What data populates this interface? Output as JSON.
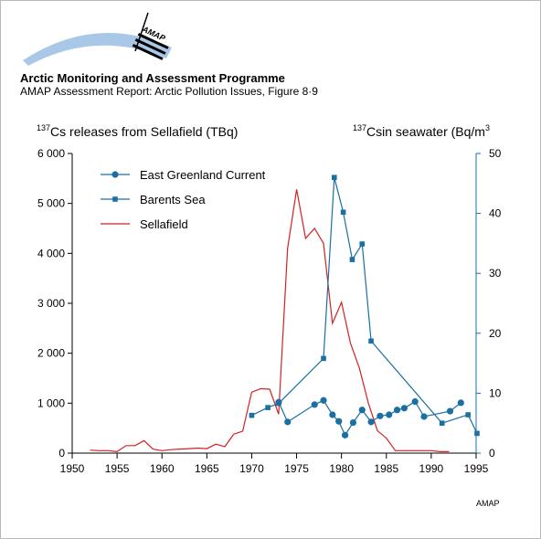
{
  "header": {
    "organization": "Arctic Monitoring and Assessment Programme",
    "report": "AMAP Assessment Report: Arctic Pollution Issues, Figure 8·9",
    "logo_text": "AMAP"
  },
  "footer": {
    "credit": "AMAP"
  },
  "colors": {
    "sellafield": "#d42020",
    "seawater": "#1a6fa3",
    "axis": "#000000"
  },
  "chart_data": {
    "type": "line",
    "left_axis_label": {
      "sup": "137",
      "text": "Cs releases from Sellafield (TBq)"
    },
    "right_axis_label": {
      "sup": "137",
      "text": "Csin seawater (Bq/m",
      "sup2": "3"
    },
    "x_ticks": [
      1950,
      1955,
      1960,
      1965,
      1970,
      1975,
      1980,
      1985,
      1990,
      1995
    ],
    "xlim": [
      1950,
      1995
    ],
    "y_left_ticks": [
      "0",
      "1 000",
      "2 000",
      "3 000",
      "4 000",
      "5 000",
      "6 000"
    ],
    "y_left_values": [
      0,
      1000,
      2000,
      3000,
      4000,
      5000,
      6000
    ],
    "ylim_left": [
      0,
      6000
    ],
    "y_right_ticks": [
      "0",
      "10",
      "20",
      "30",
      "40",
      "50"
    ],
    "y_right_values": [
      0,
      10,
      20,
      30,
      40,
      50
    ],
    "ylim_right": [
      0,
      50
    ],
    "legend_position": "top-left",
    "series": [
      {
        "name": "East Greenland Current",
        "axis": "right",
        "marker": "circle",
        "color": "#1a6fa3",
        "x": [
          1973,
          1974,
          1977,
          1978,
          1979,
          1979.7,
          1980.4,
          1981.3,
          1982.3,
          1983.3,
          1984.3,
          1985.3,
          1986.2,
          1987,
          1988.2,
          1989.2,
          1992.1,
          1993.3
        ],
        "y": [
          8.5,
          5.2,
          8.1,
          8.8,
          6.4,
          5.3,
          3.0,
          5.1,
          7.2,
          5.2,
          6.2,
          6.4,
          7.2,
          7.5,
          8.6,
          6.1,
          7.0,
          8.4
        ]
      },
      {
        "name": "Barents Sea",
        "axis": "right",
        "marker": "square",
        "color": "#1a6fa3",
        "x": [
          1970,
          1971.8,
          1973,
          1978,
          1979.2,
          1980.2,
          1981.2,
          1982.3,
          1983.3,
          1991.2,
          1994.1,
          1995.1
        ],
        "y": [
          6.3,
          7.6,
          8.3,
          15.8,
          46.0,
          40.2,
          32.3,
          34.9,
          18.7,
          5.0,
          6.4,
          3.3
        ]
      },
      {
        "name": "Sellafield",
        "axis": "left",
        "marker": "none",
        "color": "#d42020",
        "x": [
          1952,
          1953,
          1954,
          1955,
          1956,
          1957,
          1958,
          1959,
          1960,
          1961,
          1962,
          1963,
          1964,
          1965,
          1966,
          1967,
          1968,
          1969,
          1970,
          1971,
          1972,
          1973,
          1974,
          1975,
          1976,
          1977,
          1978,
          1979,
          1980,
          1981,
          1982,
          1983,
          1984,
          1985,
          1986,
          1987,
          1988,
          1989,
          1990,
          1991,
          1992
        ],
        "y": [
          60,
          50,
          50,
          30,
          150,
          150,
          250,
          80,
          50,
          70,
          80,
          90,
          100,
          90,
          180,
          130,
          380,
          440,
          1220,
          1290,
          1280,
          780,
          4100,
          5280,
          4300,
          4500,
          4200,
          2600,
          3020,
          2200,
          1700,
          1000,
          450,
          300,
          50,
          50,
          50,
          50,
          50,
          30,
          30
        ]
      }
    ]
  }
}
